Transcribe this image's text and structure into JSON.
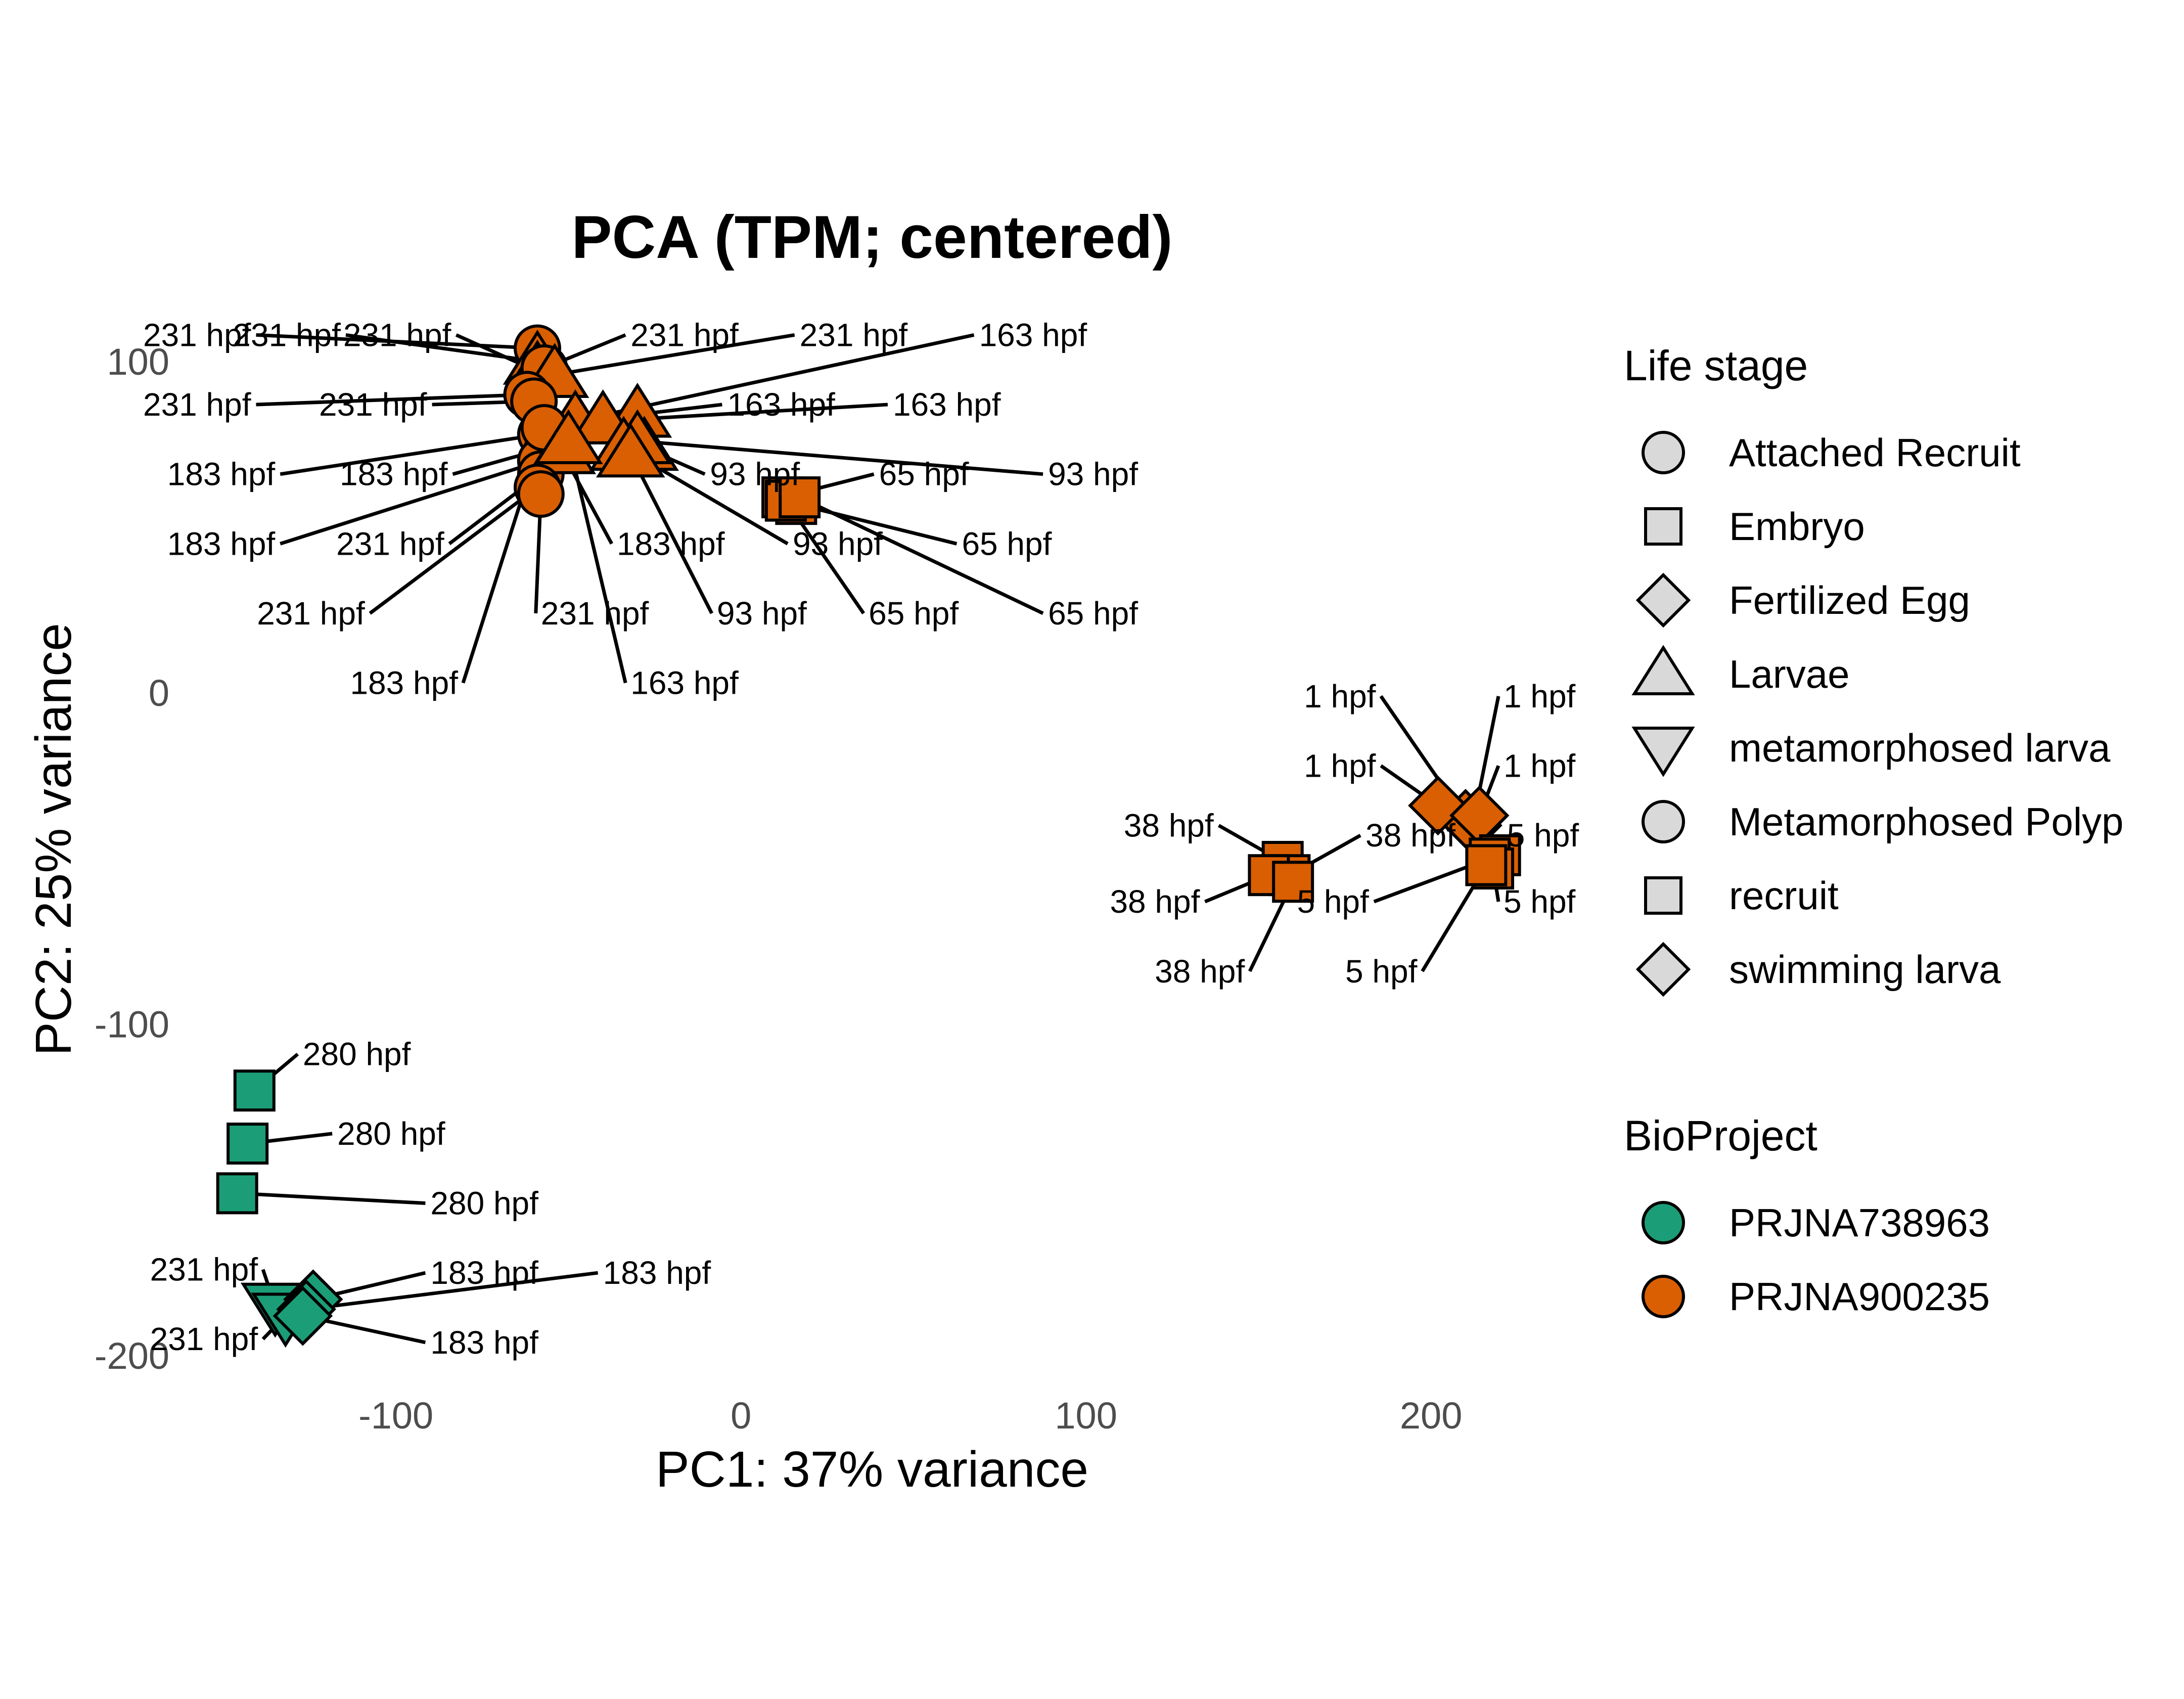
{
  "chart_data": {
    "type": "scatter",
    "title": "PCA (TPM; centered)",
    "xlabel": "PC1: 37% variance",
    "ylabel": "PC2: 25% variance",
    "xlim": [
      -162,
      238
    ],
    "ylim": [
      -209,
      116
    ],
    "xticks": [
      -100,
      0,
      100,
      200
    ],
    "yticks": [
      -200,
      -100,
      0,
      100
    ],
    "xtick_labels": [
      "-100",
      "0",
      "100",
      "200"
    ],
    "ytick_labels": [
      "-200",
      "-100",
      "0",
      "100"
    ],
    "grid": false,
    "legend_position": "right",
    "legend": {
      "shape_title": "Life stage",
      "shapes": [
        {
          "label": "Attached Recruit",
          "shape": "circle"
        },
        {
          "label": "Embryo",
          "shape": "square"
        },
        {
          "label": "Fertilized Egg",
          "shape": "diamond"
        },
        {
          "label": "Larvae",
          "shape": "triangle-up"
        },
        {
          "label": "metamorphosed larva",
          "shape": "triangle-down"
        },
        {
          "label": "Metamorphosed Polyp",
          "shape": "circle"
        },
        {
          "label": "recruit",
          "shape": "square"
        },
        {
          "label": "swimming larva",
          "shape": "diamond"
        }
      ],
      "color_title": "BioProject",
      "colors": [
        {
          "label": "PRJNA738963",
          "color": "#1b9e77"
        },
        {
          "label": "PRJNA900235",
          "color": "#d95f02"
        }
      ]
    },
    "points": [
      {
        "x": -59,
        "y": 104,
        "shape": "circle",
        "project": "PRJNA900235",
        "label": "231 hpf",
        "lx": -142,
        "ly": 108
      },
      {
        "x": -59,
        "y": 100,
        "shape": "triangle-up",
        "project": "PRJNA900235",
        "label": "231 hpf",
        "lx": -116,
        "ly": 108
      },
      {
        "x": -59,
        "y": 97,
        "shape": "triangle-up",
        "project": "PRJNA900235",
        "label": "231 hpf",
        "lx": -84,
        "ly": 108
      },
      {
        "x": -57,
        "y": 98,
        "shape": "circle",
        "project": "PRJNA900235",
        "label": "231 hpf",
        "lx": -32,
        "ly": 108
      },
      {
        "x": -54,
        "y": 96,
        "shape": "triangle-up",
        "project": "PRJNA900235",
        "label": "231 hpf",
        "lx": 17,
        "ly": 108
      },
      {
        "x": -48,
        "y": 82,
        "shape": "triangle-up",
        "project": "PRJNA900235",
        "label": "163 hpf",
        "lx": 69,
        "ly": 108
      },
      {
        "x": -62,
        "y": 90,
        "shape": "circle",
        "project": "PRJNA900235",
        "label": "231 hpf",
        "lx": -142,
        "ly": 87
      },
      {
        "x": -60,
        "y": 88,
        "shape": "circle",
        "project": "PRJNA900235",
        "label": "231 hpf",
        "lx": -91,
        "ly": 87
      },
      {
        "x": -30,
        "y": 84,
        "shape": "triangle-up",
        "project": "PRJNA900235",
        "label": "163 hpf",
        "lx": -4,
        "ly": 87
      },
      {
        "x": -40,
        "y": 82,
        "shape": "triangle-up",
        "project": "PRJNA900235",
        "label": "163 hpf",
        "lx": 44,
        "ly": 87
      },
      {
        "x": -58,
        "y": 78,
        "shape": "circle",
        "project": "PRJNA900235",
        "label": "183 hpf",
        "lx": -135,
        "ly": 66
      },
      {
        "x": -56,
        "y": 74,
        "shape": "circle",
        "project": "PRJNA900235",
        "label": "183 hpf",
        "lx": -85,
        "ly": 66
      },
      {
        "x": -28,
        "y": 74,
        "shape": "triangle-up",
        "project": "PRJNA900235",
        "label": "93 hpf",
        "lx": -9,
        "ly": 66
      },
      {
        "x": -30,
        "y": 76,
        "shape": "triangle-up",
        "project": "PRJNA900235",
        "label": "93 hpf",
        "lx": 89,
        "ly": 66
      },
      {
        "x": 12,
        "y": 59,
        "shape": "square",
        "project": "PRJNA900235",
        "label": "65 hpf",
        "lx": 40,
        "ly": 66
      },
      {
        "x": -58,
        "y": 70,
        "shape": "circle",
        "project": "PRJNA900235",
        "label": "183 hpf",
        "lx": -135,
        "ly": 45
      },
      {
        "x": -58,
        "y": 66,
        "shape": "circle",
        "project": "PRJNA900235",
        "label": "231 hpf",
        "lx": -86,
        "ly": 45
      },
      {
        "x": -52,
        "y": 73,
        "shape": "triangle-up",
        "project": "PRJNA900235",
        "label": "183 hpf",
        "lx": -36,
        "ly": 45
      },
      {
        "x": -34,
        "y": 74,
        "shape": "triangle-up",
        "project": "PRJNA900235",
        "label": "93 hpf",
        "lx": 15,
        "ly": 45
      },
      {
        "x": 16,
        "y": 57,
        "shape": "square",
        "project": "PRJNA900235",
        "label": "65 hpf",
        "lx": 64,
        "ly": 45
      },
      {
        "x": -59,
        "y": 62,
        "shape": "circle",
        "project": "PRJNA900235",
        "label": "231 hpf",
        "lx": -109,
        "ly": 24
      },
      {
        "x": -58,
        "y": 60,
        "shape": "circle",
        "project": "PRJNA900235",
        "label": "231 hpf",
        "lx": -58,
        "ly": 24
      },
      {
        "x": -32,
        "y": 72,
        "shape": "triangle-up",
        "project": "PRJNA900235",
        "label": "93 hpf",
        "lx": -7,
        "ly": 24
      },
      {
        "x": 13,
        "y": 58,
        "shape": "square",
        "project": "PRJNA900235",
        "label": "65 hpf",
        "lx": 37,
        "ly": 24
      },
      {
        "x": 17,
        "y": 59,
        "shape": "square",
        "project": "PRJNA900235",
        "label": "65 hpf",
        "lx": 89,
        "ly": 24
      },
      {
        "x": -57,
        "y": 80,
        "shape": "circle",
        "project": "PRJNA900235",
        "label": "183 hpf",
        "lx": -82,
        "ly": 3
      },
      {
        "x": -50,
        "y": 76,
        "shape": "triangle-up",
        "project": "PRJNA900235",
        "label": "163 hpf",
        "lx": -32,
        "ly": 3
      },
      {
        "x": 210,
        "y": -38,
        "shape": "diamond",
        "project": "PRJNA900235",
        "label": "1 hpf",
        "lx": 184,
        "ly": -1
      },
      {
        "x": 212,
        "y": -40,
        "shape": "diamond",
        "project": "PRJNA900235",
        "label": "1 hpf",
        "lx": 221,
        "ly": -1
      },
      {
        "x": 202,
        "y": -34,
        "shape": "diamond",
        "project": "PRJNA900235",
        "label": "1 hpf",
        "lx": 184,
        "ly": -22
      },
      {
        "x": 214,
        "y": -37,
        "shape": "diamond",
        "project": "PRJNA900235",
        "label": "1 hpf",
        "lx": 221,
        "ly": -22
      },
      {
        "x": 157,
        "y": -51,
        "shape": "square",
        "project": "PRJNA900235",
        "label": "38 hpf",
        "lx": 137,
        "ly": -40
      },
      {
        "x": 159,
        "y": -55,
        "shape": "square",
        "project": "PRJNA900235",
        "label": "38 hpf",
        "lx": 181,
        "ly": -43
      },
      {
        "x": 220,
        "y": -49,
        "shape": "square",
        "project": "PRJNA900235",
        "label": "5 hpf",
        "lx": 222,
        "ly": -43
      },
      {
        "x": 153,
        "y": -55,
        "shape": "square",
        "project": "PRJNA900235",
        "label": "38 hpf",
        "lx": 133,
        "ly": -63
      },
      {
        "x": 217,
        "y": -50,
        "shape": "square",
        "project": "PRJNA900235",
        "label": "5 hpf",
        "lx": 182,
        "ly": -63
      },
      {
        "x": 218,
        "y": -53,
        "shape": "square",
        "project": "PRJNA900235",
        "label": "5 hpf",
        "lx": 221,
        "ly": -63
      },
      {
        "x": 160,
        "y": -57,
        "shape": "square",
        "project": "PRJNA900235",
        "label": "38 hpf",
        "lx": 146,
        "ly": -84
      },
      {
        "x": 216,
        "y": -52,
        "shape": "square",
        "project": "PRJNA900235",
        "label": "5 hpf",
        "lx": 196,
        "ly": -84
      },
      {
        "x": -141,
        "y": -120,
        "shape": "square",
        "project": "PRJNA738963",
        "label": "280 hpf",
        "lx": -127,
        "ly": -109
      },
      {
        "x": -143,
        "y": -136,
        "shape": "square",
        "project": "PRJNA738963",
        "label": "280 hpf",
        "lx": -117,
        "ly": -133
      },
      {
        "x": -146,
        "y": -151,
        "shape": "square",
        "project": "PRJNA738963",
        "label": "280 hpf",
        "lx": -90,
        "ly": -154
      },
      {
        "x": -135,
        "y": -185,
        "shape": "triangle-down",
        "project": "PRJNA738963",
        "label": "231 hpf",
        "lx": -140,
        "ly": -174
      },
      {
        "x": -132,
        "y": -188,
        "shape": "triangle-down",
        "project": "PRJNA738963",
        "label": "231 hpf",
        "lx": -140,
        "ly": -195
      },
      {
        "x": -124,
        "y": -183,
        "shape": "diamond",
        "project": "PRJNA738963",
        "label": "183 hpf",
        "lx": -90,
        "ly": -175
      },
      {
        "x": -126,
        "y": -186,
        "shape": "diamond",
        "project": "PRJNA738963",
        "label": "183 hpf",
        "lx": -40,
        "ly": -175
      },
      {
        "x": -127,
        "y": -188,
        "shape": "diamond",
        "project": "PRJNA738963",
        "label": "183 hpf",
        "lx": -90,
        "ly": -196
      }
    ]
  }
}
